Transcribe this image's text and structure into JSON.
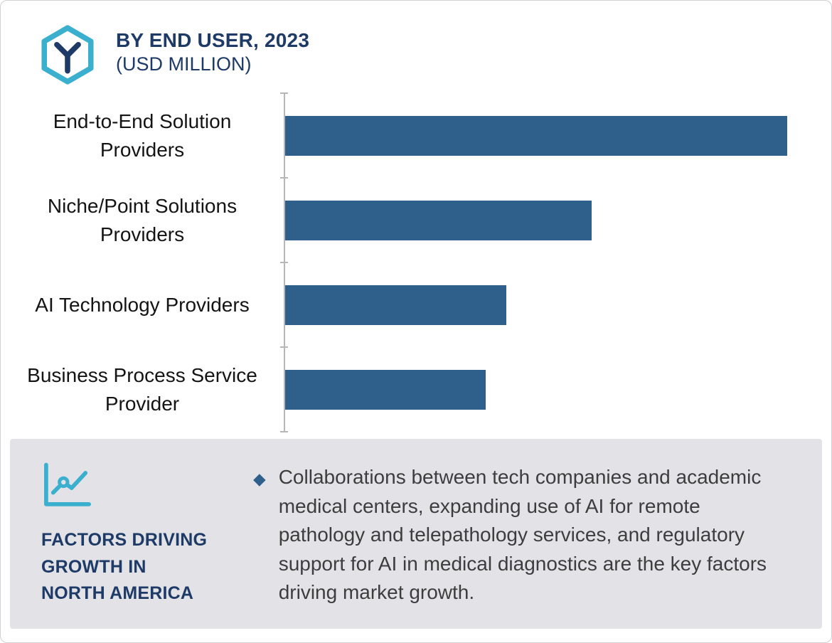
{
  "header": {
    "title": "BY END USER, 2023",
    "subtitle": "(USD MILLION)"
  },
  "chart_data": {
    "type": "bar",
    "orientation": "horizontal",
    "title": "BY END USER, 2023 (USD MILLION)",
    "xlabel": "",
    "ylabel": "",
    "unit": "USD Million",
    "categories": [
      "End-to-End Solution Providers",
      "Niche/Point Solutions Providers",
      "AI Technology Providers",
      "Business Process Service Provider"
    ],
    "values": [
      100,
      61,
      44,
      40
    ],
    "values_note": "relative bar lengths, no numeric labels shown in chart",
    "xlim": [
      0,
      100
    ],
    "grid": false,
    "legend": false,
    "bar_color": "#2F608C",
    "axis_color": "#b6b6bb"
  },
  "factors": {
    "heading_line1": "FACTORS DRIVING",
    "heading_line2": "GROWTH IN",
    "heading_line3": "NORTH AMERICA",
    "bullet_marker": "◆",
    "bullet_text": "Collaborations between tech companies and academic medical centers, expanding use of AI for remote pathology and telepathology services, and regulatory support for AI in medical diagnostics are the key factors driving market growth."
  },
  "colors": {
    "bar": "#2F608C",
    "navy": "#1E3A66",
    "teal": "#3AAFCE",
    "panel_bg": "#E3E3E7",
    "border": "#cfcfd4"
  }
}
